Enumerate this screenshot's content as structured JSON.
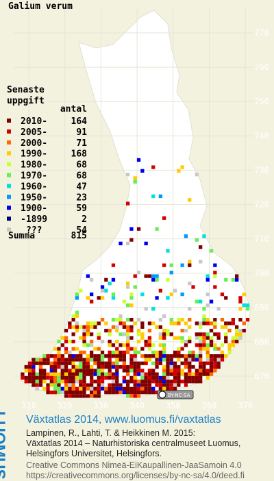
{
  "title": "Galium verum",
  "legend": {
    "heading": [
      "Senaste",
      "uppgift"
    ],
    "count_heading": "antal",
    "rows": [
      {
        "label": "2010-",
        "count": 164,
        "color": "#800000"
      },
      {
        "label": "2005-",
        "count": 91,
        "color": "#d40000"
      },
      {
        "label": "2000-",
        "count": 71,
        "color": "#ff6a00"
      },
      {
        "label": "1990-",
        "count": 168,
        "color": "#ffcc00"
      },
      {
        "label": "1980-",
        "count": 68,
        "color": "#ccff33"
      },
      {
        "label": "1970-",
        "count": 68,
        "color": "#66ee55"
      },
      {
        "label": "1960-",
        "count": 47,
        "color": "#00e0e0"
      },
      {
        "label": "1950-",
        "count": 23,
        "color": "#0099ff"
      },
      {
        "label": "1900-",
        "count": 59,
        "color": "#0000ee"
      },
      {
        "label": "-1899",
        "count": 2,
        "color": "#000080"
      },
      {
        "label": "???",
        "count": 54,
        "color": "#c8c8c8"
      }
    ],
    "total": {
      "label": "Summa",
      "count": 815
    }
  },
  "x_labels": [
    "310",
    "320",
    "330",
    "340",
    "350",
    "360",
    "370"
  ],
  "y_labels": [
    "770",
    "760",
    "750",
    "740",
    "730",
    "720",
    "710",
    "700",
    "690",
    "680",
    "670"
  ],
  "badge": "BY-NC-SA",
  "footer": {
    "logo": "LUOMUS",
    "headline": "Växtatlas 2014, www.luomus.fi/vaxtatlas",
    "citation": [
      "Lampinen, R., Lahti, T. & Heikkinen M. 2015:",
      "Växtatlas 2014 – Naturhistoriska centralmuseet Luomus,",
      "Helsingfors Universitet, Helsingfors."
    ],
    "license": [
      "Creative Commons Nimeä-EiKaupallinen-JaaSamoin 4.0",
      "https://creativecommons.org/licenses/by-nc-sa/4.0/deed.fi"
    ]
  }
}
